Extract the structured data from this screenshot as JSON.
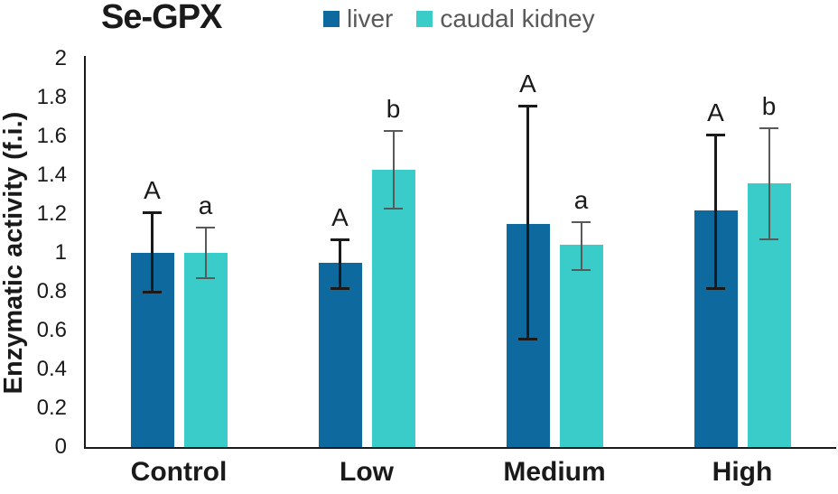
{
  "chart_data": {
    "type": "bar",
    "title": "Se-GPX",
    "ylabel": "Enzymatic activity (f.i.)",
    "xlabel": "",
    "ylim": [
      0,
      2
    ],
    "ytick_labels": [
      "0",
      "0.2",
      "0.4",
      "0.6",
      "0.8",
      "1",
      "1.2",
      "1.4",
      "1.6",
      "1.8",
      "2"
    ],
    "grid": false,
    "legend_position": "top",
    "categories": [
      "Control",
      "Low",
      "Medium",
      "High"
    ],
    "series": [
      {
        "name": "liver",
        "color": "#0E6A9E",
        "error_bar_color": "#1a1a1a",
        "values": [
          1.0,
          0.95,
          1.15,
          1.22
        ],
        "error_low": [
          0.8,
          0.82,
          0.56,
          0.82
        ],
        "error_high": [
          1.21,
          1.07,
          1.76,
          1.61
        ],
        "significance_letters": [
          "A",
          "A",
          "A",
          "A"
        ]
      },
      {
        "name": "caudal kidney",
        "color": "#39CCC9",
        "error_bar_color": "#595959",
        "values": [
          1.0,
          1.43,
          1.04,
          1.36
        ],
        "error_low": [
          0.87,
          1.23,
          0.91,
          1.07
        ],
        "error_high": [
          1.13,
          1.63,
          1.16,
          1.64
        ],
        "significance_letters": [
          "a",
          "b",
          "a",
          "b"
        ]
      }
    ]
  }
}
